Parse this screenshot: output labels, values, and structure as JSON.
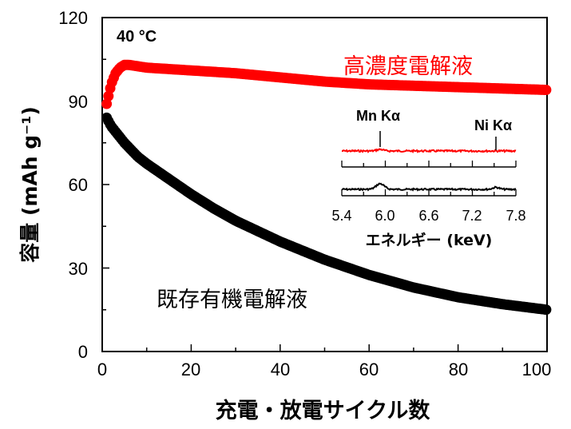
{
  "chart_data": [
    {
      "type": "scatter",
      "title": "",
      "annotation": "40 °C",
      "xlabel": "充電・放電サイクル数",
      "ylabel": "容量 (mAh g⁻¹)",
      "xlim": [
        0,
        100
      ],
      "ylim": [
        0,
        120
      ],
      "xticks": [
        0,
        20,
        40,
        60,
        80,
        100
      ],
      "yticks": [
        0,
        30,
        60,
        90,
        120
      ],
      "colors": {
        "high_concentration": "#ff0000",
        "conventional": "#000000"
      },
      "series": [
        {
          "name": "高濃度電解液",
          "x": [
            1,
            2,
            3,
            4,
            5,
            6,
            8,
            10,
            15,
            20,
            25,
            30,
            40,
            50,
            60,
            70,
            80,
            90,
            100
          ],
          "values": [
            89,
            96,
            100,
            102,
            103,
            103,
            102.5,
            102,
            101.5,
            101,
            100.5,
            100,
            98.5,
            97,
            96,
            95.5,
            95,
            94.5,
            94
          ]
        },
        {
          "name": "既存有機電解液",
          "x": [
            1,
            2,
            3,
            5,
            8,
            10,
            15,
            20,
            25,
            30,
            40,
            50,
            60,
            70,
            80,
            90,
            100
          ],
          "values": [
            84,
            81,
            79,
            75,
            70,
            67.5,
            62,
            56.5,
            51.5,
            47,
            39.5,
            33,
            27.5,
            23,
            19.5,
            17,
            15
          ]
        }
      ]
    },
    {
      "type": "line",
      "title": "",
      "xlabel": "エネルギー (keV)",
      "ylabel": "",
      "xlim": [
        5.4,
        7.8
      ],
      "xticks": [
        "5.4",
        "6.0",
        "6.6",
        "7.2",
        "7.8"
      ],
      "annotations": [
        {
          "text": "Mn Kα",
          "x": 5.9
        },
        {
          "text": "Ni Kα",
          "x": 7.48
        }
      ],
      "series": [
        {
          "name": "高濃度電解液",
          "color": "#ff0000"
        },
        {
          "name": "既存有機電解液",
          "color": "#000000"
        }
      ]
    }
  ]
}
